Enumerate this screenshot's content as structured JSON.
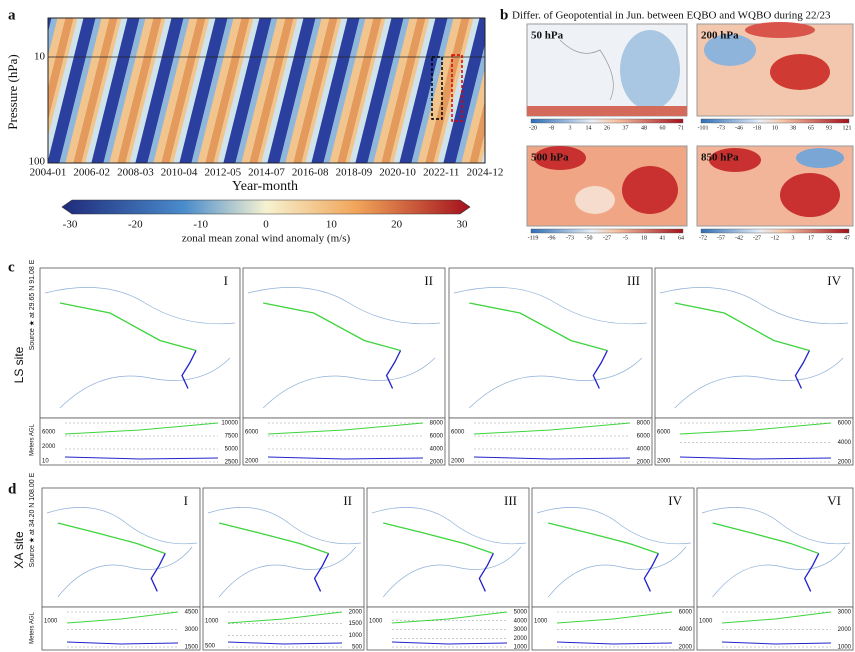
{
  "panel_a": {
    "label": "a",
    "y_axis_label": "Pressure (hPa)",
    "y_ticks": [
      "10",
      "100"
    ],
    "x_ticks": [
      "2004-01",
      "2006-02",
      "2008-03",
      "2010-04",
      "2012-05",
      "2014-07",
      "2016-08",
      "2018-09",
      "2020-10",
      "2022-11",
      "2024-12"
    ],
    "x_axis_label": "Year-month",
    "colorbar_ticks": [
      "-30",
      "-20",
      "-10",
      "0",
      "10",
      "20",
      "30"
    ],
    "colorbar_label": "zonal mean zonal wind anomaly (m/s)"
  },
  "panel_b": {
    "label": "b",
    "title": "Differ. of Geopotential in Jun. between EQBO and WQBO during 22/23",
    "maps": [
      {
        "level": "50 hPa",
        "colorbar_ticks": [
          "-20",
          "-8",
          "3",
          "14",
          "26",
          "37",
          "48",
          "60",
          "71"
        ]
      },
      {
        "level": "200 hPa",
        "colorbar_ticks": [
          "-101",
          "-73",
          "-46",
          "-18",
          "10",
          "38",
          "65",
          "93",
          "121"
        ]
      },
      {
        "level": "500 hPa",
        "colorbar_ticks": [
          "-119",
          "-96",
          "-73",
          "-50",
          "-27",
          "-5",
          "18",
          "41",
          "64"
        ]
      },
      {
        "level": "850 hPa",
        "colorbar_ticks": [
          "-72",
          "-57",
          "-42",
          "-27",
          "-12",
          "3",
          "17",
          "32",
          "47"
        ]
      }
    ]
  },
  "panel_c": {
    "label": "c",
    "site_label": "LS site",
    "source_label": "Source ★ at 29.65 N 91.08 E",
    "y_axis_label": "Meters AGL",
    "panels": [
      {
        "numeral": "I",
        "right_ticks": [
          "10000",
          "7500",
          "5000",
          "2500"
        ],
        "left_ticks": [
          "6000",
          "2000",
          "10"
        ]
      },
      {
        "numeral": "II",
        "right_ticks": [
          "8000",
          "6000",
          "4000",
          "2000"
        ],
        "left_ticks": [
          "6000",
          "2000"
        ]
      },
      {
        "numeral": "III",
        "right_ticks": [
          "8000",
          "6000",
          "4000",
          "2000"
        ],
        "left_ticks": [
          "6000",
          "2000"
        ]
      },
      {
        "numeral": "IV",
        "right_ticks": [
          "6000",
          "4000",
          "2000"
        ],
        "left_ticks": [
          "6000",
          "2000"
        ]
      }
    ]
  },
  "panel_d": {
    "label": "d",
    "site_label": "XA site",
    "source_label": "Source ★ at 34.20 N 108.00 E",
    "y_axis_label": "Meters AGL",
    "panels": [
      {
        "numeral": "I",
        "right_ticks": [
          "4500",
          "3000",
          "1500"
        ],
        "left_ticks": [
          "1000"
        ]
      },
      {
        "numeral": "II",
        "right_ticks": [
          "2000",
          "1500",
          "1000",
          "500"
        ],
        "left_ticks": [
          "1000",
          "500"
        ]
      },
      {
        "numeral": "III",
        "right_ticks": [
          "5000",
          "4000",
          "3000",
          "2000",
          "1000"
        ],
        "left_ticks": [
          "1000"
        ]
      },
      {
        "numeral": "IV",
        "right_ticks": [
          "6000",
          "4000",
          "2000"
        ],
        "left_ticks": [
          "1000"
        ]
      },
      {
        "numeral": "VI",
        "right_ticks": [
          "3000",
          "2000",
          "1000"
        ],
        "left_ticks": [
          "1000"
        ]
      }
    ]
  }
}
